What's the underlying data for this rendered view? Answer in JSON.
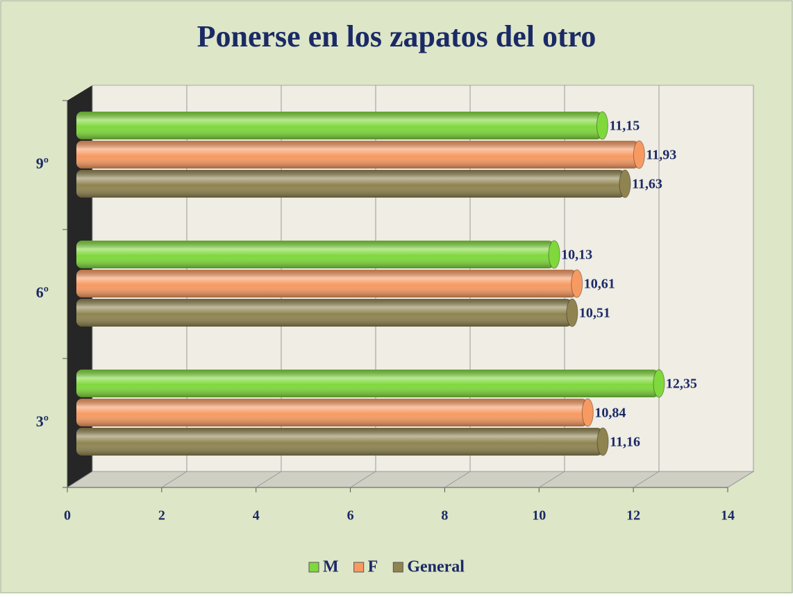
{
  "chart_data": {
    "type": "bar",
    "orientation": "horizontal",
    "title": "Ponerse en los zapatos del otro",
    "categories": [
      "3º",
      "6º",
      "9º"
    ],
    "series": [
      {
        "name": "M",
        "color": "#7fd83c",
        "values": [
          12.35,
          10.13,
          11.15
        ],
        "value_labels": [
          "12,35",
          "10,13",
          "11,15"
        ]
      },
      {
        "name": "F",
        "color": "#f79a62",
        "values": [
          10.84,
          10.61,
          11.93
        ],
        "value_labels": [
          "10,84",
          "10,61",
          "11,93"
        ]
      },
      {
        "name": "General",
        "color": "#8f8450",
        "values": [
          11.16,
          10.51,
          11.63
        ],
        "value_labels": [
          "11,16",
          "10,51",
          "11,63"
        ]
      }
    ],
    "xlim": [
      0,
      14
    ],
    "xticks": [
      0,
      2,
      4,
      6,
      8,
      10,
      12,
      14
    ],
    "grid": true,
    "legend": "bottom"
  }
}
